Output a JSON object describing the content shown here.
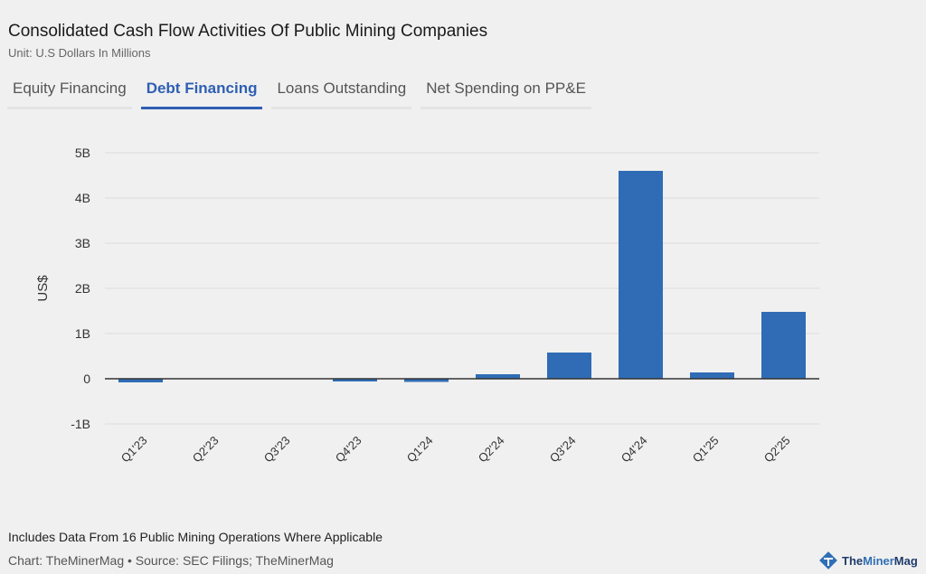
{
  "header": {
    "title": "Consolidated Cash Flow Activities Of Public Mining Companies",
    "subtitle": "Unit: U.S Dollars In Millions"
  },
  "tabs": [
    {
      "label": "Equity Financing",
      "active": false
    },
    {
      "label": "Debt Financing",
      "active": true
    },
    {
      "label": "Loans Outstanding",
      "active": false
    },
    {
      "label": "Net Spending on PP&E",
      "active": false
    }
  ],
  "chart_data": {
    "type": "bar",
    "title": "",
    "xlabel": "",
    "ylabel": "US$",
    "categories": [
      "Q1'23",
      "Q2'23",
      "Q3'23",
      "Q4'23",
      "Q1'24",
      "Q2'24",
      "Q3'24",
      "Q4'24",
      "Q1'25",
      "Q2'25"
    ],
    "values": [
      -80,
      0,
      0,
      -60,
      -70,
      100,
      580,
      4600,
      140,
      1480
    ],
    "ylim": [
      -1000,
      5000
    ],
    "yticks": [
      {
        "v": 5000,
        "label": "5B"
      },
      {
        "v": 4000,
        "label": "4B"
      },
      {
        "v": 3000,
        "label": "3B"
      },
      {
        "v": 2000,
        "label": "2B"
      },
      {
        "v": 1000,
        "label": "1B"
      },
      {
        "v": 0,
        "label": "0"
      },
      {
        "v": -1000,
        "label": "-1B"
      }
    ],
    "grid": true,
    "color": "#2f6cb5"
  },
  "footer": {
    "note": "Includes Data From 16 Public Mining Operations Where Applicable",
    "credit": "Chart: TheMinerMag • Source: SEC Filings; TheMinerMag",
    "logo_a": "The",
    "logo_b": "Miner",
    "logo_c": "Mag"
  }
}
